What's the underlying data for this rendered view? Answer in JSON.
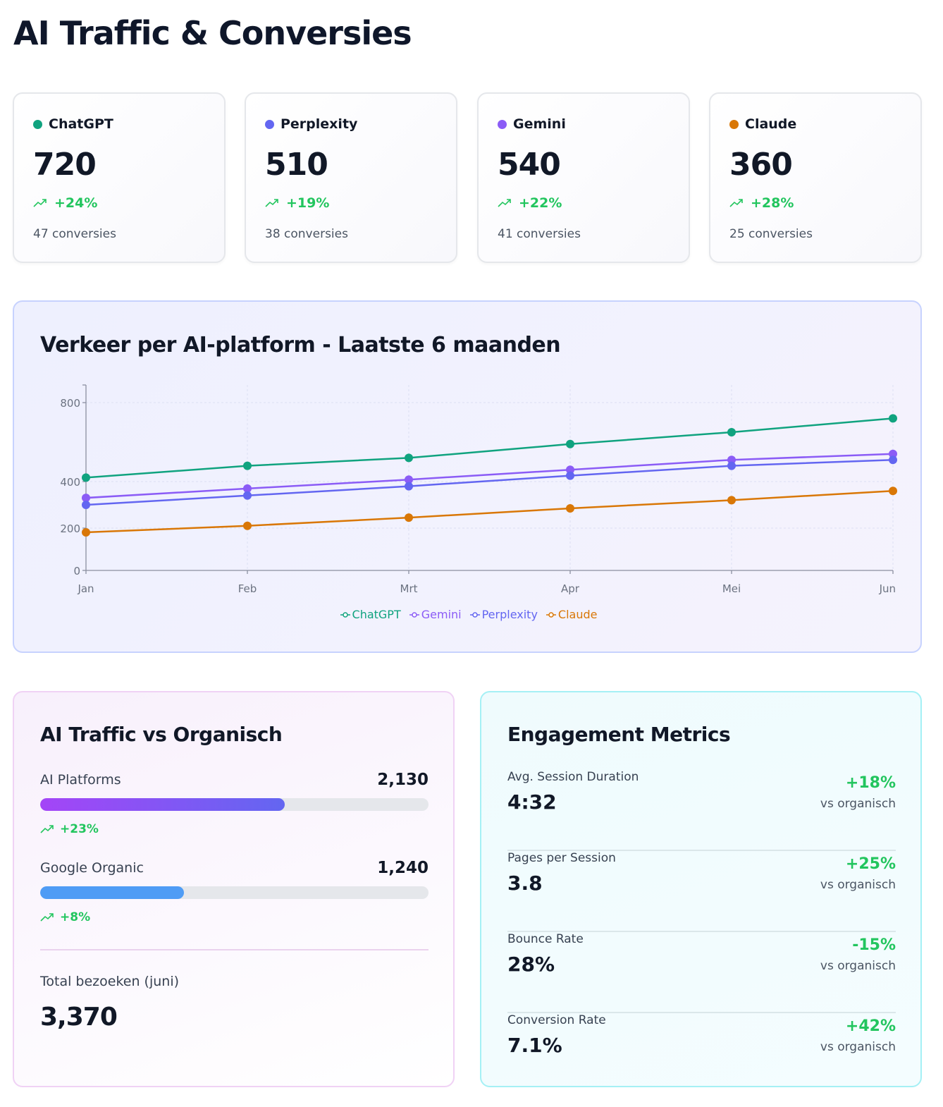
{
  "page_title": "AI Traffic & Conversies",
  "kpis": [
    {
      "name": "ChatGPT",
      "color": "#10a37f",
      "value": "720",
      "change": "+24%",
      "conversions": "47 conversies"
    },
    {
      "name": "Perplexity",
      "color": "#6366f1",
      "value": "510",
      "change": "+19%",
      "conversions": "38 conversies"
    },
    {
      "name": "Gemini",
      "color": "#8b5cf6",
      "value": "540",
      "change": "+22%",
      "conversions": "41 conversies"
    },
    {
      "name": "Claude",
      "color": "#d97706",
      "value": "360",
      "change": "+28%",
      "conversions": "25 conversies"
    }
  ],
  "chart_title": "Verkeer per AI-platform - Laatste 6 maanden",
  "chart_data": {
    "type": "line",
    "title": "Verkeer per AI-platform - Laatste 6 maanden",
    "categories": [
      "Jan",
      "Feb",
      "Mrt",
      "Apr",
      "Mei",
      "Jun"
    ],
    "y_ticks": [
      "0",
      "200",
      "400",
      "800"
    ],
    "y_tick_values": [
      0,
      200,
      400,
      800
    ],
    "y_scale": "non-uniform",
    "grid": true,
    "legend_position": "bottom-center",
    "series": [
      {
        "name": "ChatGPT",
        "color": "#10a37f",
        "values": [
          420,
          480,
          520,
          590,
          650,
          720
        ]
      },
      {
        "name": "Gemini",
        "color": "#8b5cf6",
        "values": [
          330,
          370,
          410,
          460,
          510,
          540
        ]
      },
      {
        "name": "Perplexity",
        "color": "#6366f1",
        "values": [
          300,
          340,
          380,
          430,
          480,
          510
        ]
      },
      {
        "name": "Claude",
        "color": "#d97706",
        "values": [
          180,
          210,
          245,
          285,
          320,
          360
        ]
      }
    ]
  },
  "comparison": {
    "title": "AI Traffic vs Organisch",
    "items": [
      {
        "label": "AI Platforms",
        "value": "2,130",
        "fill": 0.63,
        "change": "+23%"
      },
      {
        "label": "Google Organic",
        "value": "1,240",
        "fill": 0.37,
        "change": "+8%"
      }
    ],
    "total_label": "Total bezoeken (juni)",
    "total_value": "3,370"
  },
  "engagement": {
    "title": "Engagement Metrics",
    "items": [
      {
        "label": "Avg. Session Duration",
        "value": "4:32",
        "change": "+18%",
        "vs": "vs organisch"
      },
      {
        "label": "Pages per Session",
        "value": "3.8",
        "change": "+25%",
        "vs": "vs organisch"
      },
      {
        "label": "Bounce Rate",
        "value": "28%",
        "change": "-15%",
        "vs": "vs organisch"
      },
      {
        "label": "Conversion Rate",
        "value": "7.1%",
        "change": "+42%",
        "vs": "vs organisch"
      }
    ]
  }
}
